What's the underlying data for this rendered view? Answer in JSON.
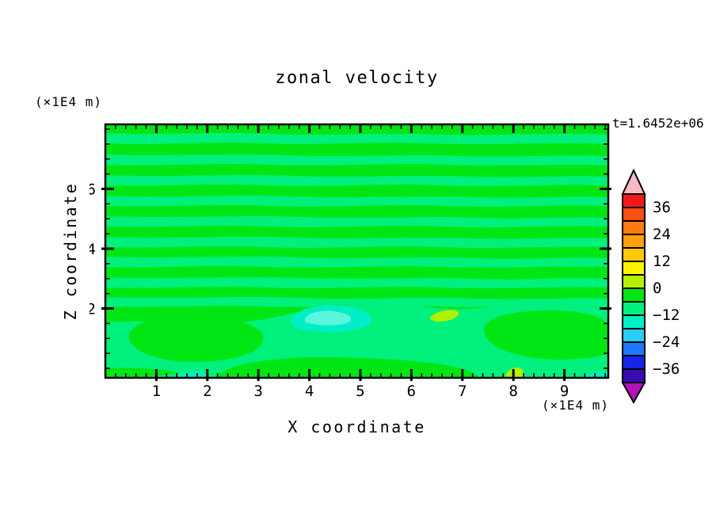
{
  "header": {
    "title": "zonal velocity",
    "time_label": "t=1.6452e+06"
  },
  "units": {
    "top_left": "(×1E4 m)",
    "bottom_right": "(×1E4 m)"
  },
  "axes": {
    "x_title": "X coordinate",
    "y_title": "Z coordinate",
    "x_tick_labels": [
      "1",
      "2",
      "3",
      "4",
      "5",
      "6",
      "7",
      "8",
      "9"
    ],
    "y_tick_labels": [
      "2",
      "4",
      "6"
    ],
    "y_tick_values": [
      2,
      4,
      6
    ]
  },
  "palette": {
    "frame": "#000000",
    "background": "#ffffff",
    "green": "#00e614",
    "band": "#00f07d",
    "turquoise": "#00eec6",
    "aqua": "#5cf6e0",
    "chartreuse": "#b4ef00"
  },
  "colorbar": {
    "over_color": "#f9b8c4",
    "under_color": "#b014b4",
    "segments": [
      {
        "range": "36 to 42",
        "color": "#f21818"
      },
      {
        "range": "30 to 36",
        "color": "#fb4f14"
      },
      {
        "range": "24 to 30",
        "color": "#ff7b10"
      },
      {
        "range": "18 to 24",
        "color": "#ffa00c"
      },
      {
        "range": "12 to 18",
        "color": "#ffc908"
      },
      {
        "range": "6 to 12",
        "color": "#fdf403"
      },
      {
        "range": "0 to 6",
        "color": "#b4ef00"
      },
      {
        "range": "-6 to 0",
        "color": "#00e614"
      },
      {
        "range": "-12 to -6",
        "color": "#00f07d"
      },
      {
        "range": "-18 to -12",
        "color": "#00eec6"
      },
      {
        "range": "-24 to -18",
        "color": "#29cdf6"
      },
      {
        "range": "-30 to -24",
        "color": "#1e78ff"
      },
      {
        "range": "-36 to -30",
        "color": "#1724e8"
      },
      {
        "range": "-42 to -36",
        "color": "#3a0bb4"
      }
    ],
    "labels": [
      "36",
      "24",
      "12",
      "0",
      "−12",
      "−24",
      "−36"
    ]
  },
  "chart_data": {
    "type": "heatmap",
    "title": "zonal velocity",
    "annotation": "t=1.6452e+06",
    "xlabel": "X coordinate",
    "ylabel": "Z coordinate",
    "x_unit": "(×1E4 m)",
    "y_unit": "(×1E4 m)",
    "xlim": [
      0,
      9.9
    ],
    "ylim": [
      0,
      8.2
    ],
    "x_major_ticks": [
      1,
      2,
      3,
      4,
      5,
      6,
      7,
      8,
      9
    ],
    "x_minor_tick_step": 0.2,
    "y_major_ticks": [
      2,
      4,
      6
    ],
    "y_minor_tick_step": 0.5,
    "contour_levels": [
      -42,
      -36,
      -30,
      -24,
      -18,
      -12,
      -6,
      0,
      6,
      12,
      18,
      24,
      30,
      36,
      42
    ],
    "colorbar_labeled_levels": [
      36,
      24,
      12,
      0,
      -12,
      -24,
      -36
    ],
    "legend_position": "right",
    "grid": false,
    "field_description": "Zonal velocity section; nearly the whole domain lies in the -12..0 range, drawn as thin wavy horizontal layers of two green shades above z≈2.3 and broad green blobs below",
    "features": [
      {
        "x_range": [
          0,
          9.9
        ],
        "z_range": [
          2.3,
          8.2
        ],
        "values": "-12 to 0",
        "pattern": "alternating wavy horizontal bands (-6..0 green / -12..-6 spring green)"
      },
      {
        "x_range": [
          3.7,
          5.3
        ],
        "z_range": [
          1.5,
          2.1
        ],
        "values": "-24 to -12",
        "pattern": "cyan lens (jet core)"
      },
      {
        "x_range": [
          6.4,
          6.9
        ],
        "z_range": [
          1.9,
          2.1
        ],
        "values": "0 to 6",
        "pattern": "small chartreuse spot"
      },
      {
        "x_range": [
          7.9,
          8.3
        ],
        "z_range": [
          0,
          0.35
        ],
        "values": "0 to 6",
        "pattern": "small chartreuse spot on bottom boundary"
      },
      {
        "x_range": [
          1.4,
          2.0
        ],
        "z_range": [
          0,
          0.2
        ],
        "values": "-18 to -12",
        "pattern": "turquoise patch on bottom boundary"
      },
      {
        "x_range": [
          0,
          9.9
        ],
        "z_range": [
          0,
          2.3
        ],
        "values": "-12 to 0",
        "pattern": "broad green blobs in spring-green background"
      }
    ]
  }
}
